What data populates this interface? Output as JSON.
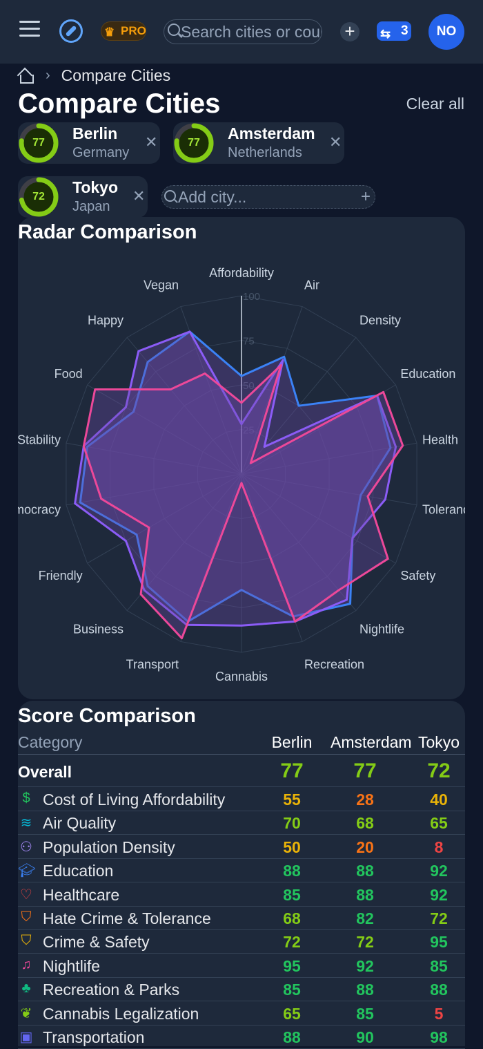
{
  "topbar": {
    "pro_label": "PRO",
    "search_placeholder": "Search cities or countries",
    "compare_count": "3",
    "avatar_initials": "NO"
  },
  "breadcrumb": {
    "current": "Compare Cities"
  },
  "page": {
    "title": "Compare Cities",
    "clear_all": "Clear all"
  },
  "cities": [
    {
      "name": "Berlin",
      "country": "Germany",
      "score": "77",
      "score_value": 77
    },
    {
      "name": "Amsterdam",
      "country": "Netherlands",
      "score": "77",
      "score_value": 77
    },
    {
      "name": "Tokyo",
      "country": "Japan",
      "score": "72",
      "score_value": 72
    }
  ],
  "add_city_placeholder": "Add city...",
  "radar": {
    "title": "Radar Comparison",
    "tick_labels": [
      "25",
      "50",
      "75",
      "100"
    ],
    "axes": [
      "Affordability",
      "Air",
      "Density",
      "Education",
      "Health",
      "Tolerance",
      "Safety",
      "Nightlife",
      "Recreation",
      "Cannabis",
      "Transport",
      "Business",
      "Friendly",
      "Democracy",
      "Stability",
      "Food",
      "Happy",
      "Vegan"
    ],
    "colors": {
      "berlin": "#3b82f6",
      "amsterdam": "#8b5cf6",
      "tokyo": "#ec4899",
      "fill": "#6d4aa8"
    }
  },
  "chart_data": {
    "type": "radar",
    "title": "Radar Comparison",
    "categories": [
      "Affordability",
      "Air",
      "Density",
      "Education",
      "Health",
      "Tolerance",
      "Safety",
      "Nightlife",
      "Recreation",
      "Cannabis",
      "Transport",
      "Business",
      "Friendly",
      "Democracy",
      "Stability",
      "Food",
      "Happy",
      "Vegan"
    ],
    "rlim": [
      0,
      100
    ],
    "series": [
      {
        "name": "Berlin",
        "values": [
          55,
          70,
          50,
          88,
          85,
          68,
          72,
          95,
          85,
          65,
          88,
          82,
          68,
          92,
          88,
          70,
          82,
          85
        ]
      },
      {
        "name": "Amsterdam",
        "values": [
          28,
          68,
          20,
          88,
          88,
          82,
          72,
          92,
          88,
          85,
          90,
          85,
          75,
          95,
          90,
          75,
          90,
          85
        ]
      },
      {
        "name": "Tokyo",
        "values": [
          40,
          65,
          8,
          92,
          92,
          72,
          95,
          85,
          88,
          5,
          98,
          88,
          60,
          80,
          90,
          95,
          62,
          60
        ]
      }
    ]
  },
  "scores": {
    "title": "Score Comparison",
    "category_header": "Category",
    "overall_label": "Overall",
    "overall": [
      "77",
      "77",
      "72"
    ],
    "rows": [
      {
        "icon": "dollar-icon",
        "glyph": "$",
        "icon_color": "#22c55e",
        "label": "Cost of Living Affordability",
        "values": [
          "55",
          "28",
          "40"
        ],
        "colors": [
          "#eab308",
          "#f97316",
          "#eab308"
        ]
      },
      {
        "icon": "wind-icon",
        "glyph": "≋",
        "icon_color": "#06b6d4",
        "label": "Air Quality",
        "values": [
          "70",
          "68",
          "65"
        ],
        "colors": [
          "#84cc16",
          "#84cc16",
          "#84cc16"
        ]
      },
      {
        "icon": "users-icon",
        "glyph": "⚇",
        "icon_color": "#a78bfa",
        "label": "Population Density",
        "values": [
          "50",
          "20",
          "8"
        ],
        "colors": [
          "#eab308",
          "#f97316",
          "#ef4444"
        ]
      },
      {
        "icon": "graduation-cap-icon",
        "glyph": "🎓︎",
        "icon_color": "#3b82f6",
        "label": "Education",
        "values": [
          "88",
          "88",
          "92"
        ],
        "colors": [
          "#22c55e",
          "#22c55e",
          "#22c55e"
        ]
      },
      {
        "icon": "heart-icon",
        "glyph": "♡",
        "icon_color": "#ef4444",
        "label": "Healthcare",
        "values": [
          "85",
          "88",
          "92"
        ],
        "colors": [
          "#22c55e",
          "#22c55e",
          "#22c55e"
        ]
      },
      {
        "icon": "shield-alert-icon",
        "glyph": "⛉",
        "icon_color": "#f97316",
        "label": "Hate Crime & Tolerance",
        "values": [
          "68",
          "82",
          "72"
        ],
        "colors": [
          "#84cc16",
          "#22c55e",
          "#84cc16"
        ]
      },
      {
        "icon": "shield-icon",
        "glyph": "⛉",
        "icon_color": "#eab308",
        "label": "Crime & Safety",
        "values": [
          "72",
          "72",
          "95"
        ],
        "colors": [
          "#84cc16",
          "#84cc16",
          "#22c55e"
        ]
      },
      {
        "icon": "music-icon",
        "glyph": "♫",
        "icon_color": "#ec4899",
        "label": "Nightlife",
        "values": [
          "95",
          "92",
          "85"
        ],
        "colors": [
          "#22c55e",
          "#22c55e",
          "#22c55e"
        ]
      },
      {
        "icon": "tree-icon",
        "glyph": "♣",
        "icon_color": "#10b981",
        "label": "Recreation & Parks",
        "values": [
          "85",
          "88",
          "88"
        ],
        "colors": [
          "#22c55e",
          "#22c55e",
          "#22c55e"
        ]
      },
      {
        "icon": "leaf-icon",
        "glyph": "❦",
        "icon_color": "#84cc16",
        "label": "Cannabis Legalization",
        "values": [
          "65",
          "85",
          "5"
        ],
        "colors": [
          "#84cc16",
          "#22c55e",
          "#ef4444"
        ]
      },
      {
        "icon": "bus-icon",
        "glyph": "▣",
        "icon_color": "#6366f1",
        "label": "Transportation",
        "values": [
          "88",
          "90",
          "98"
        ],
        "colors": [
          "#22c55e",
          "#22c55e",
          "#22c55e"
        ]
      }
    ]
  }
}
